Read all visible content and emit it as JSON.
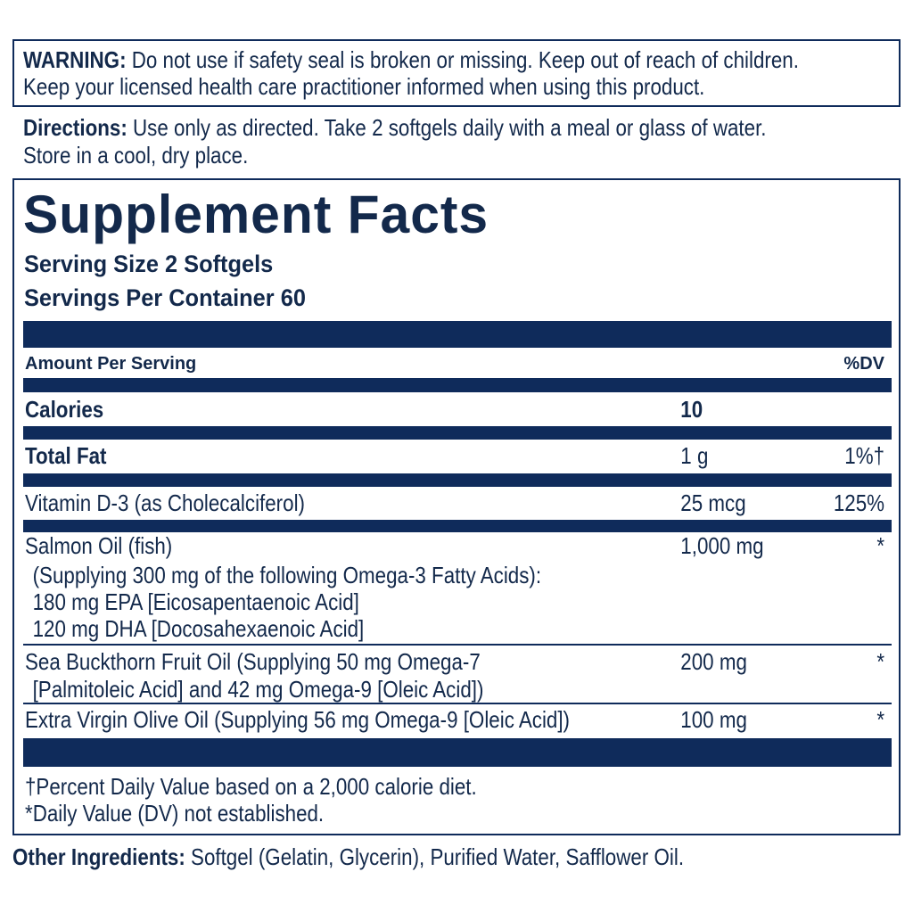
{
  "warning": {
    "label": "WARNING:",
    "line1": "Do not use if safety seal is broken or missing. Keep out of reach of children.",
    "line2": "Keep your licensed health care practitioner informed when using this product."
  },
  "directions": {
    "label": "Directions:",
    "line1": "Use only as directed. Take 2 softgels daily with a meal or glass of water.",
    "line2": "Store in a cool, dry place."
  },
  "facts": {
    "title": "Supplement Facts",
    "serving_size": "Serving Size 2 Softgels",
    "servings_per_container": "Servings Per Container 60",
    "amount_header": "Amount Per Serving",
    "dv_header": "%DV",
    "rows": [
      {
        "name": "Calories",
        "amount": "10",
        "dv": ""
      },
      {
        "name": "Total Fat",
        "amount": "1 g",
        "dv": "1%†"
      },
      {
        "name": "Vitamin D-3 (as Cholecalciferol)",
        "amount": "25 mcg",
        "dv": "125%"
      },
      {
        "name": "Salmon Oil (fish)",
        "sub": [
          "(Supplying 300 mg of the following Omega-3 Fatty Acids):",
          "180 mg EPA [Eicosapentaenoic Acid]",
          "120 mg DHA [Docosahexaenoic Acid]"
        ],
        "amount": "1,000 mg",
        "dv": "*"
      },
      {
        "name": "Sea Buckthorn Fruit Oil (Supplying 50 mg Omega-7",
        "sub": [
          "[Palmitoleic Acid] and 42 mg Omega-9 [Oleic Acid])"
        ],
        "amount": "200 mg",
        "dv": "*"
      },
      {
        "name": "Extra Virgin Olive Oil (Supplying 56 mg Omega-9 [Oleic Acid])",
        "amount": "100 mg",
        "dv": "*"
      }
    ],
    "footnote1": "†Percent Daily Value based on a 2,000 calorie diet.",
    "footnote2": "*Daily Value (DV) not established."
  },
  "other_ingredients": {
    "label": "Other Ingredients:",
    "text": "Softgel (Gelatin, Glycerin), Purified Water, Safflower Oil."
  },
  "colors": {
    "navy": "#0f2b5b",
    "text": "#13294b"
  }
}
